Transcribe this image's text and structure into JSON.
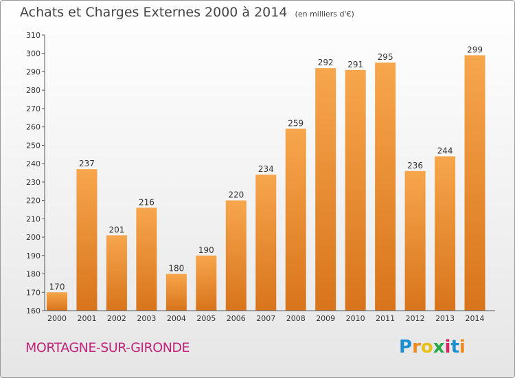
{
  "header": {
    "title": "Achats et Charges Externes 2000 à 2014",
    "unit": "(en milliers d'€)"
  },
  "footer": {
    "city": "MORTAGNE-SUR-GIRONDE",
    "logo": {
      "letters": [
        "P",
        "r",
        "o",
        "x",
        "i",
        "t",
        "i"
      ]
    }
  },
  "colors": {
    "bar_top": "#f7a64c",
    "bar_bottom": "#d8741b",
    "city": "#c0267a",
    "logo": [
      "#1b8fd0",
      "#f08a1c",
      "#e8c01a",
      "#2aa84a",
      "#d5265f",
      "#1b8fd0",
      "#f08a1c"
    ]
  },
  "chart_data": {
    "type": "bar",
    "categories": [
      "2000",
      "2001",
      "2002",
      "2003",
      "2004",
      "2005",
      "2006",
      "2007",
      "2008",
      "2009",
      "2010",
      "2011",
      "2012",
      "2013",
      "2014"
    ],
    "values": [
      170,
      237,
      201,
      216,
      180,
      190,
      220,
      234,
      259,
      292,
      291,
      295,
      236,
      244,
      299
    ],
    "title": "Achats et Charges Externes 2000 à 2014",
    "xlabel": "",
    "ylabel": "",
    "ylim": [
      160,
      310
    ],
    "yticks": [
      160,
      170,
      180,
      190,
      200,
      210,
      220,
      230,
      240,
      250,
      260,
      270,
      280,
      290,
      300,
      310
    ],
    "grid": false,
    "data_labels": true
  }
}
